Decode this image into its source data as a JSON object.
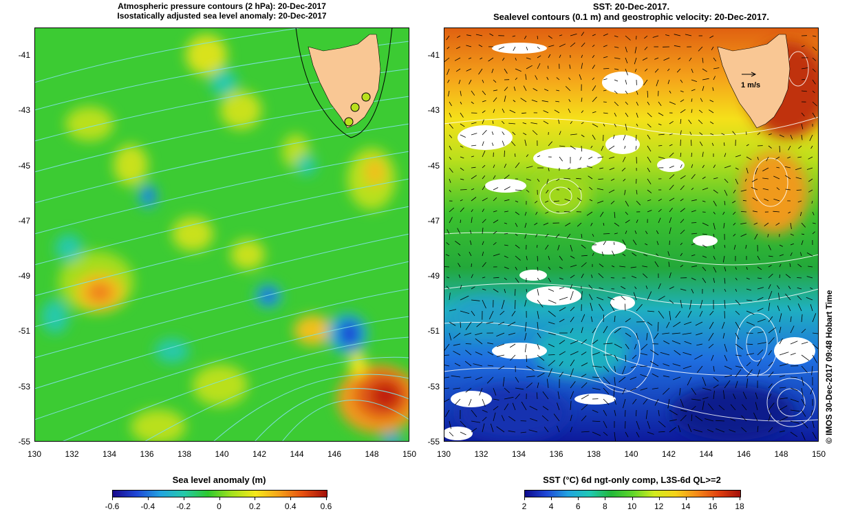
{
  "left_panel": {
    "title_line1": "Atmospheric pressure contours (2 hPa): 20-Dec-2017",
    "title_line2": "Isostatically adjusted sea level anomaly: 20-Dec-2017",
    "colorbar_title": "Sea level anomaly (m)",
    "colorbar_ticks": [
      "-0.6",
      "-0.4",
      "-0.2",
      "0",
      "0.2",
      "0.4",
      "0.6"
    ]
  },
  "right_panel": {
    "title_line1": "SST: 20-Dec-2017.",
    "title_line2": "Sealevel contours (0.1 m) and geostrophic velocity: 20-Dec-2017.",
    "velocity_scale_label": "1 m/s",
    "colorbar_title": "SST (°C) 6d ngt-only comp, L3S-6d QL>=2",
    "colorbar_ticks": [
      "2",
      "4",
      "6",
      "8",
      "10",
      "12",
      "14",
      "16",
      "18"
    ]
  },
  "axes": {
    "x_ticks": [
      "130",
      "132",
      "134",
      "136",
      "138",
      "140",
      "142",
      "144",
      "146",
      "148",
      "150"
    ],
    "y_ticks": [
      "-41",
      "-43",
      "-45",
      "-47",
      "-49",
      "-51",
      "-53",
      "-55"
    ],
    "x_range": [
      130,
      150
    ],
    "y_range": [
      -55,
      -40
    ]
  },
  "credit": "© IMOS 30-Dec-2017 09:48 Hobart Time",
  "colors": {
    "land": "#f9c794",
    "pressure_contour": "#7fe0e0",
    "sealevel_contour": "#ffffff"
  }
}
